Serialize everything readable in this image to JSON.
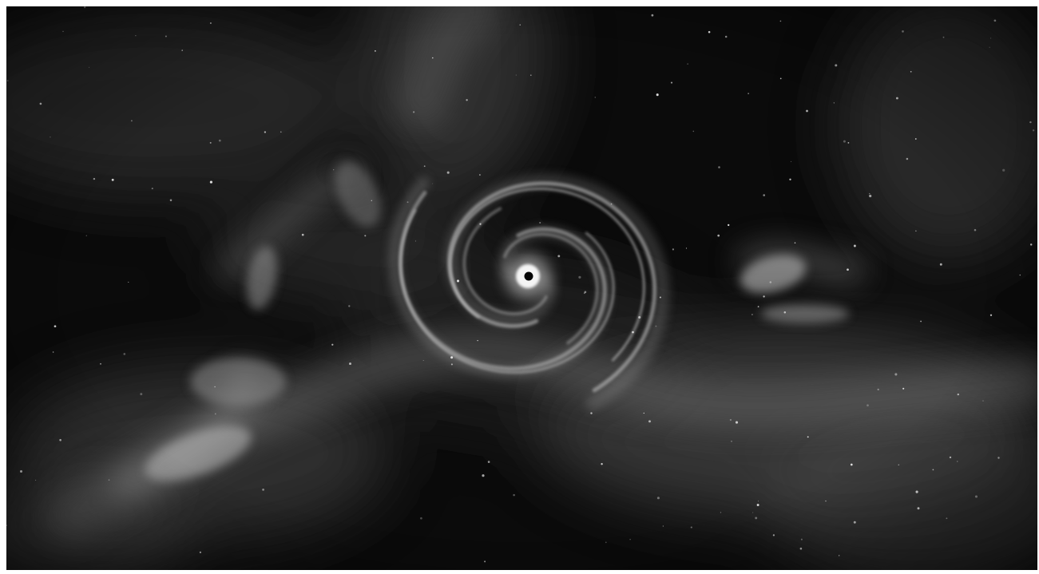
{
  "scene": {
    "subject": "black-hole-accretion-swirl",
    "palette": {
      "background": "#0b0b0b",
      "haze": "#6e6e6e",
      "swirl": "#bdbdbd",
      "core_glow": "#ffffff",
      "core_hole": "#000000"
    }
  }
}
